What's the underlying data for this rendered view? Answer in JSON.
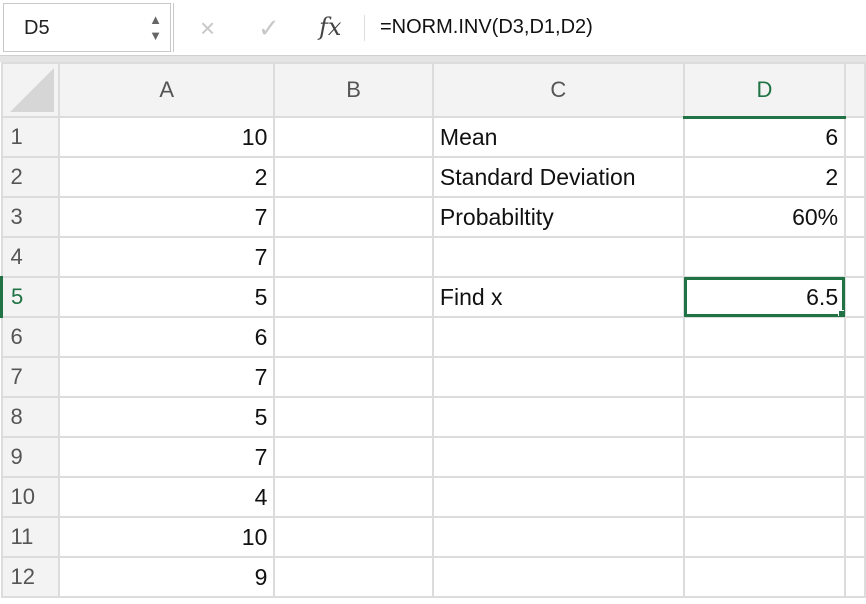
{
  "name_box": "D5",
  "formula": "=NORM.INV(D3,D1,D2)",
  "icons": {
    "cancel": "×",
    "enter": "✓",
    "fx": "fx"
  },
  "accent": "#217346",
  "columns": [
    "A",
    "B",
    "C",
    "D",
    ""
  ],
  "rows": [
    {
      "n": "1",
      "A": "10",
      "C": "Mean",
      "D": "6"
    },
    {
      "n": "2",
      "A": "2",
      "C": "Standard Deviation",
      "D": "2"
    },
    {
      "n": "3",
      "A": "7",
      "C": "Probabiltity",
      "D": "60%"
    },
    {
      "n": "4",
      "A": "7",
      "C": "",
      "D": ""
    },
    {
      "n": "5",
      "A": "5",
      "C": "Find x",
      "D": "6.5"
    },
    {
      "n": "6",
      "A": "6",
      "C": "",
      "D": ""
    },
    {
      "n": "7",
      "A": "7",
      "C": "",
      "D": ""
    },
    {
      "n": "8",
      "A": "5",
      "C": "",
      "D": ""
    },
    {
      "n": "9",
      "A": "7",
      "C": "",
      "D": ""
    },
    {
      "n": "10",
      "A": "4",
      "C": "",
      "D": ""
    },
    {
      "n": "11",
      "A": "10",
      "C": "",
      "D": ""
    },
    {
      "n": "12",
      "A": "9",
      "C": "",
      "D": ""
    }
  ]
}
